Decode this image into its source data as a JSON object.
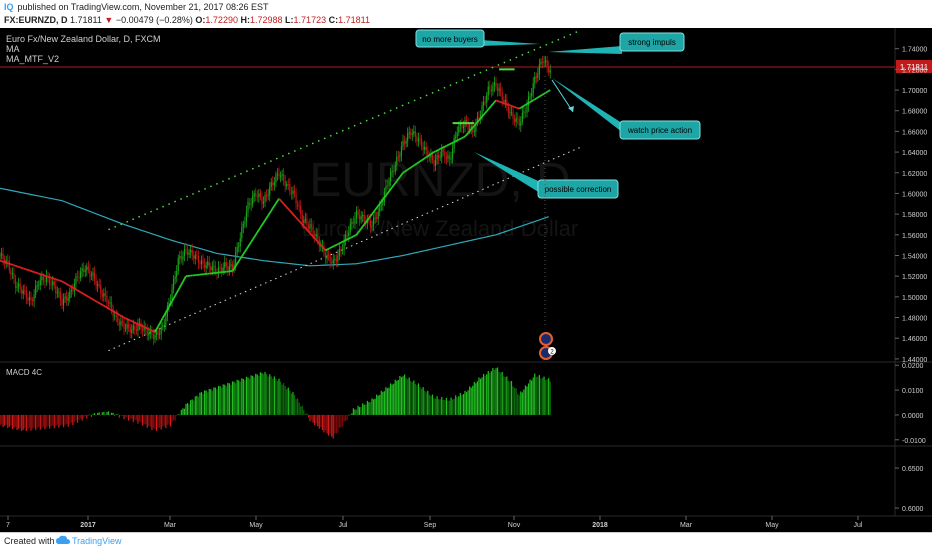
{
  "header": {
    "logo": "IQ",
    "published": "published on TradingView.com, November 21, 2017 08:26 EST",
    "symbol": "FX:EURNZD, D",
    "last": "1.71811",
    "change": "−0.00479 (−0.28%)",
    "o_label": "O:",
    "o": "1.72290",
    "h_label": "H:",
    "h": "1.72988",
    "l_label": "L:",
    "l": "1.71723",
    "c_label": "C:",
    "c": "1.71811"
  },
  "legend": {
    "title": "Euro Fx/New Zealand Dollar, D, FXCM",
    "ind1": "MA",
    "ind2": "MA_MTF_V2"
  },
  "watermark": {
    "symbol": "EURNZD, D",
    "name": "Euro Fx/New Zealand Dollar"
  },
  "annotations": {
    "no_more_buyers": "no more buyers",
    "strong_impuls": "strong impuls",
    "watch_price_action": "watch price action",
    "possible_correction": "possible correction"
  },
  "price_badge": "1.71811",
  "macd_label": "MACD 4C",
  "event_badge": "2",
  "footer": {
    "created": "Created with",
    "brand": "TradingView"
  },
  "chart_data": [
    {
      "type": "candlestick",
      "title": "Euro Fx/New Zealand Dollar, D, FXCM",
      "series": [
        {
          "name": "EURNZD"
        },
        {
          "name": "MA"
        },
        {
          "name": "MA_MTF_V2"
        }
      ],
      "x_ticks": [
        "7",
        "2017",
        "Mar",
        "May",
        "Jul",
        "Sep",
        "Nov",
        "2018",
        "Mar",
        "May",
        "Jul"
      ],
      "y_ticks": [
        "1.74000",
        "1.72000",
        "1.70000",
        "1.68000",
        "1.66000",
        "1.64000",
        "1.62000",
        "1.60000",
        "1.58000",
        "1.56000",
        "1.54000",
        "1.52000",
        "1.50000",
        "1.48000",
        "1.46000",
        "1.44000"
      ],
      "ylim": [
        1.437,
        1.76
      ],
      "close_path": [
        [
          0,
          1.54
        ],
        [
          5,
          1.532
        ],
        [
          10,
          1.512
        ],
        [
          15,
          1.505
        ],
        [
          20,
          1.495
        ],
        [
          25,
          1.515
        ],
        [
          30,
          1.518
        ],
        [
          35,
          1.51
        ],
        [
          40,
          1.495
        ],
        [
          45,
          1.502
        ],
        [
          50,
          1.52
        ],
        [
          55,
          1.528
        ],
        [
          60,
          1.52
        ],
        [
          65,
          1.505
        ],
        [
          70,
          1.495
        ],
        [
          75,
          1.478
        ],
        [
          80,
          1.472
        ],
        [
          85,
          1.468
        ],
        [
          90,
          1.472
        ],
        [
          95,
          1.466
        ],
        [
          100,
          1.462
        ],
        [
          105,
          1.47
        ],
        [
          110,
          1.5
        ],
        [
          115,
          1.535
        ],
        [
          120,
          1.545
        ],
        [
          125,
          1.54
        ],
        [
          130,
          1.532
        ],
        [
          135,
          1.53
        ],
        [
          140,
          1.525
        ],
        [
          145,
          1.53
        ],
        [
          150,
          1.528
        ],
        [
          155,
          1.558
        ],
        [
          160,
          1.588
        ],
        [
          165,
          1.6
        ],
        [
          170,
          1.592
        ],
        [
          175,
          1.608
        ],
        [
          180,
          1.62
        ],
        [
          185,
          1.608
        ],
        [
          190,
          1.598
        ],
        [
          195,
          1.575
        ],
        [
          200,
          1.568
        ],
        [
          205,
          1.555
        ],
        [
          210,
          1.54
        ],
        [
          215,
          1.533
        ],
        [
          220,
          1.545
        ],
        [
          225,
          1.565
        ],
        [
          230,
          1.58
        ],
        [
          235,
          1.575
        ],
        [
          240,
          1.57
        ],
        [
          245,
          1.585
        ],
        [
          250,
          1.61
        ],
        [
          255,
          1.628
        ],
        [
          260,
          1.648
        ],
        [
          265,
          1.66
        ],
        [
          270,
          1.652
        ],
        [
          275,
          1.64
        ],
        [
          280,
          1.63
        ],
        [
          285,
          1.64
        ],
        [
          290,
          1.632
        ],
        [
          295,
          1.662
        ],
        [
          300,
          1.668
        ],
        [
          305,
          1.66
        ],
        [
          310,
          1.678
        ],
        [
          315,
          1.7
        ],
        [
          320,
          1.705
        ],
        [
          325,
          1.69
        ],
        [
          330,
          1.675
        ],
        [
          335,
          1.668
        ],
        [
          340,
          1.685
        ],
        [
          345,
          1.71
        ],
        [
          350,
          1.73
        ],
        [
          355,
          1.718
        ]
      ],
      "ma_path": [
        [
          0,
          1.535
        ],
        [
          40,
          1.515
        ],
        [
          80,
          1.48
        ],
        [
          100,
          1.466
        ],
        [
          120,
          1.52
        ],
        [
          150,
          1.525
        ],
        [
          180,
          1.595
        ],
        [
          210,
          1.545
        ],
        [
          230,
          1.56
        ],
        [
          260,
          1.62
        ],
        [
          280,
          1.64
        ],
        [
          300,
          1.655
        ],
        [
          320,
          1.69
        ],
        [
          335,
          1.682
        ],
        [
          355,
          1.7
        ]
      ],
      "ma_long_path": [
        [
          0,
          1.605
        ],
        [
          40,
          1.593
        ],
        [
          80,
          1.57
        ],
        [
          110,
          1.555
        ],
        [
          140,
          1.542
        ],
        [
          170,
          1.535
        ],
        [
          200,
          1.53
        ],
        [
          230,
          1.532
        ],
        [
          260,
          1.54
        ],
        [
          290,
          1.55
        ],
        [
          320,
          1.56
        ],
        [
          355,
          1.578
        ]
      ],
      "trend_upper": [
        [
          70,
          1.565
        ],
        [
          375,
          1.758
        ]
      ],
      "trend_lower": [
        [
          70,
          1.448
        ],
        [
          375,
          1.645
        ]
      ],
      "resistance_marks": [
        [
          292,
          1.668,
          14
        ],
        [
          322,
          1.72,
          10
        ]
      ],
      "unit_note": "x: trading-day index (last bar = Nov 21 2017)"
    },
    {
      "type": "bar",
      "title": "MACD 4C",
      "y_ticks": [
        "0.0200",
        "0.0100",
        "0.0000",
        "-0.0100"
      ],
      "ylim": [
        -0.0125,
        0.0205
      ],
      "hist_path": [
        [
          0,
          -0.004
        ],
        [
          15,
          -0.006
        ],
        [
          30,
          -0.005
        ],
        [
          45,
          -0.004
        ],
        [
          55,
          -0.001
        ],
        [
          62,
          0.0005
        ],
        [
          70,
          0.001
        ],
        [
          80,
          -0.001
        ],
        [
          90,
          -0.003
        ],
        [
          100,
          -0.006
        ],
        [
          110,
          -0.004
        ],
        [
          120,
          0.004
        ],
        [
          130,
          0.009
        ],
        [
          140,
          0.011
        ],
        [
          150,
          0.013
        ],
        [
          160,
          0.015
        ],
        [
          170,
          0.017
        ],
        [
          180,
          0.014
        ],
        [
          190,
          0.008
        ],
        [
          200,
          -0.002
        ],
        [
          210,
          -0.007
        ],
        [
          215,
          -0.009
        ],
        [
          220,
          -0.005
        ],
        [
          228,
          0.002
        ],
        [
          240,
          0.006
        ],
        [
          250,
          0.011
        ],
        [
          260,
          0.016
        ],
        [
          270,
          0.012
        ],
        [
          280,
          0.007
        ],
        [
          290,
          0.006
        ],
        [
          300,
          0.009
        ],
        [
          310,
          0.015
        ],
        [
          320,
          0.019
        ],
        [
          330,
          0.013
        ],
        [
          335,
          0.008
        ],
        [
          345,
          0.016
        ],
        [
          355,
          0.014
        ]
      ]
    },
    {
      "type": "line",
      "title": "",
      "y_ticks": [
        "0.6500",
        "0.6000"
      ],
      "ylim": [
        0.59,
        0.675
      ]
    }
  ]
}
